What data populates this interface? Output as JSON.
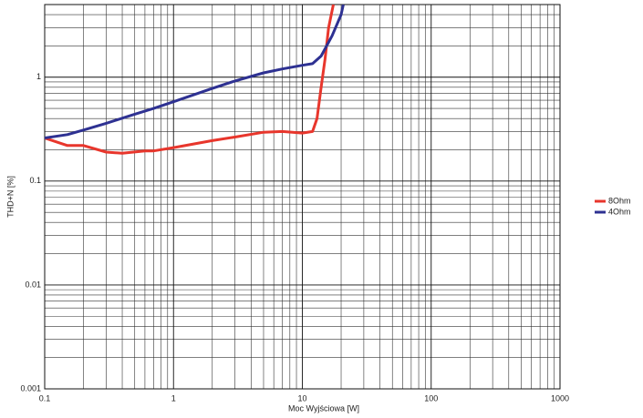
{
  "chart_data": {
    "type": "line",
    "x_label": "Moc Wyjściowa [W]",
    "y_label": "THD+N [%]",
    "log_x": true,
    "log_y": true,
    "grid": true,
    "legend": "right",
    "xlim": [
      0.1,
      1000
    ],
    "ylim": [
      0.001,
      5
    ],
    "xticks": [
      0.1,
      1,
      10,
      100,
      1000
    ],
    "yticks": [
      0.001,
      0.01,
      0.1,
      1
    ],
    "xminorticks": [
      0.2,
      0.3,
      0.4,
      0.5,
      0.6,
      0.7,
      0.8,
      0.9,
      2,
      3,
      4,
      5,
      6,
      7,
      8,
      9,
      20,
      30,
      40,
      50,
      60,
      70,
      80,
      90,
      200,
      300,
      400,
      500,
      600,
      700,
      800,
      900
    ],
    "yminorticks": [
      0.002,
      0.003,
      0.004,
      0.005,
      0.006,
      0.007,
      0.008,
      0.009,
      0.02,
      0.03,
      0.04,
      0.05,
      0.06,
      0.07,
      0.08,
      0.09,
      0.2,
      0.3,
      0.4,
      0.5,
      0.6,
      0.7,
      0.8,
      0.9,
      2,
      3,
      4,
      5
    ],
    "series": [
      {
        "name": "8Ohm",
        "color": "#e8362c",
        "x": [
          0.1,
          0.15,
          0.2,
          0.3,
          0.4,
          0.6,
          0.7,
          1,
          2,
          3,
          5,
          7,
          10,
          12,
          13,
          14,
          15,
          16,
          17.4
        ],
        "values": [
          0.26,
          0.22,
          0.22,
          0.19,
          0.185,
          0.195,
          0.195,
          0.21,
          0.245,
          0.265,
          0.295,
          0.3,
          0.29,
          0.3,
          0.4,
          0.8,
          1.5,
          3,
          5
        ]
      },
      {
        "name": "4Ohm",
        "color": "#2e3192",
        "x": [
          0.1,
          0.15,
          0.2,
          0.3,
          0.5,
          0.7,
          1,
          2,
          3,
          5,
          7,
          10,
          12,
          14,
          17,
          20,
          20.8
        ],
        "values": [
          0.26,
          0.28,
          0.31,
          0.36,
          0.44,
          0.5,
          0.58,
          0.78,
          0.92,
          1.1,
          1.2,
          1.3,
          1.35,
          1.6,
          2.5,
          4,
          5
        ]
      }
    ]
  }
}
